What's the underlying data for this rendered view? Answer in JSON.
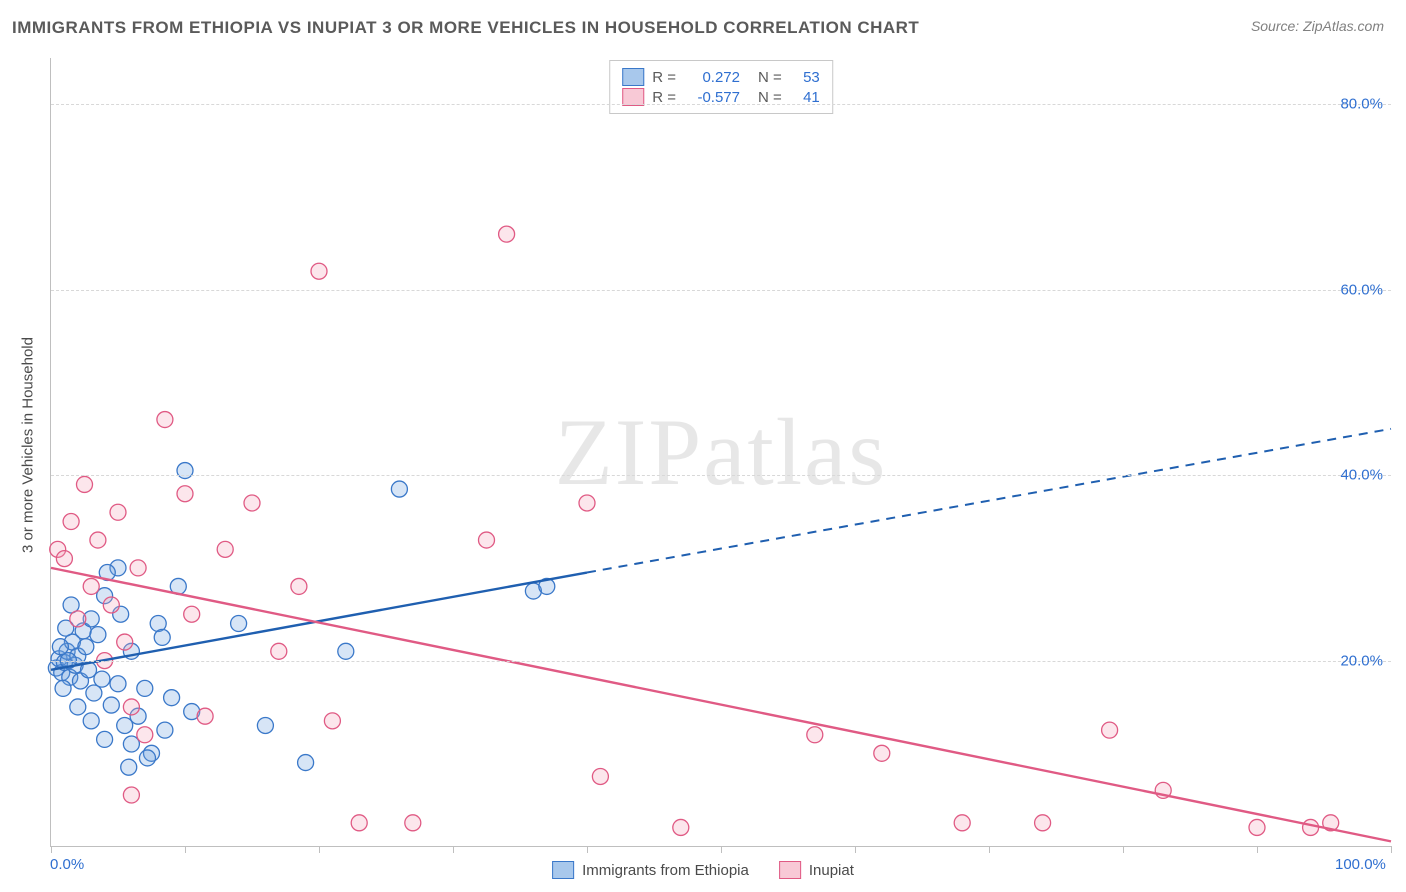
{
  "title": "IMMIGRANTS FROM ETHIOPIA VS INUPIAT 3 OR MORE VEHICLES IN HOUSEHOLD CORRELATION CHART",
  "source": "Source: ZipAtlas.com",
  "watermark": "ZIPatlas",
  "y_axis_title": "3 or more Vehicles in Household",
  "chart": {
    "type": "scatter-with-trend",
    "xlim": [
      0,
      100
    ],
    "ylim": [
      0,
      85
    ],
    "x_ticks": [
      0,
      10,
      20,
      30,
      40,
      50,
      60,
      70,
      80,
      90,
      100
    ],
    "x_tick_labels": {
      "0": "0.0%",
      "100": "100.0%"
    },
    "y_ticks": [
      20,
      40,
      60,
      80
    ],
    "y_tick_labels": {
      "20": "20.0%",
      "40": "40.0%",
      "60": "60.0%",
      "80": "80.0%"
    },
    "marker_radius": 8,
    "marker_stroke_width": 1.3,
    "marker_fill_opacity": 0.28,
    "background_color": "#ffffff",
    "grid_color": "#d8d8d8",
    "axis_color": "#bfbfbf"
  },
  "series": [
    {
      "name": "Immigrants from Ethiopia",
      "color": "#6fa3e0",
      "stroke": "#3a78c9",
      "line_color": "#1f5fb0",
      "R": "0.272",
      "N": "53",
      "trend": {
        "x1": 0,
        "y1": 19,
        "x2_solid": 40,
        "y2_solid": 29.5,
        "x2": 100,
        "y2": 45
      },
      "points": [
        [
          0.4,
          19.2
        ],
        [
          0.6,
          20.2
        ],
        [
          0.8,
          18.7
        ],
        [
          1.0,
          19.8
        ],
        [
          1.2,
          21.0
        ],
        [
          1.4,
          18.2
        ],
        [
          1.6,
          22.0
        ],
        [
          1.8,
          19.5
        ],
        [
          2.0,
          20.5
        ],
        [
          2.2,
          17.8
        ],
        [
          2.4,
          23.2
        ],
        [
          2.6,
          21.5
        ],
        [
          2.8,
          19.0
        ],
        [
          3.0,
          24.5
        ],
        [
          3.2,
          16.5
        ],
        [
          3.5,
          22.8
        ],
        [
          3.8,
          18.0
        ],
        [
          4.0,
          27.0
        ],
        [
          4.5,
          15.2
        ],
        [
          5.0,
          30.0
        ],
        [
          5.2,
          25.0
        ],
        [
          5.5,
          13.0
        ],
        [
          6.0,
          21.0
        ],
        [
          6.5,
          14.0
        ],
        [
          7.0,
          17.0
        ],
        [
          7.5,
          10.0
        ],
        [
          8.0,
          24.0
        ],
        [
          8.5,
          12.5
        ],
        [
          9.0,
          16.0
        ],
        [
          9.5,
          28.0
        ],
        [
          10.0,
          40.5
        ],
        [
          10.5,
          14.5
        ],
        [
          2.0,
          15.0
        ],
        [
          3.0,
          13.5
        ],
        [
          4.0,
          11.5
        ],
        [
          5.0,
          17.5
        ],
        [
          6.0,
          11.0
        ],
        [
          1.5,
          26.0
        ],
        [
          0.9,
          17.0
        ],
        [
          1.1,
          23.5
        ],
        [
          4.2,
          29.5
        ],
        [
          5.8,
          8.5
        ],
        [
          7.2,
          9.5
        ],
        [
          8.3,
          22.5
        ],
        [
          19.0,
          9.0
        ],
        [
          14.0,
          24.0
        ],
        [
          16.0,
          13.0
        ],
        [
          22.0,
          21.0
        ],
        [
          26.0,
          38.5
        ],
        [
          36.0,
          27.5
        ],
        [
          37.0,
          28.0
        ],
        [
          1.3,
          20.0
        ],
        [
          0.7,
          21.5
        ]
      ]
    },
    {
      "name": "Inupiat",
      "color": "#f4a7bb",
      "stroke": "#e05a84",
      "line_color": "#e05a84",
      "R": "-0.577",
      "N": "41",
      "trend": {
        "x1": 0,
        "y1": 30,
        "x2_solid": 100,
        "y2_solid": 0.5,
        "x2": 100,
        "y2": 0.5
      },
      "points": [
        [
          0.5,
          32.0
        ],
        [
          1.0,
          31.0
        ],
        [
          1.5,
          35.0
        ],
        [
          2.0,
          24.5
        ],
        [
          2.5,
          39.0
        ],
        [
          3.0,
          28.0
        ],
        [
          3.5,
          33.0
        ],
        [
          4.0,
          20.0
        ],
        [
          4.5,
          26.0
        ],
        [
          5.0,
          36.0
        ],
        [
          5.5,
          22.0
        ],
        [
          6.0,
          15.0
        ],
        [
          6.5,
          30.0
        ],
        [
          7.0,
          12.0
        ],
        [
          8.5,
          46.0
        ],
        [
          10.0,
          38.0
        ],
        [
          10.5,
          25.0
        ],
        [
          11.5,
          14.0
        ],
        [
          13.0,
          32.0
        ],
        [
          15.0,
          37.0
        ],
        [
          17.0,
          21.0
        ],
        [
          18.5,
          28.0
        ],
        [
          20.0,
          62.0
        ],
        [
          21.0,
          13.5
        ],
        [
          23.0,
          2.5
        ],
        [
          27.0,
          2.5
        ],
        [
          32.5,
          33.0
        ],
        [
          34.0,
          66.0
        ],
        [
          40.0,
          37.0
        ],
        [
          41.0,
          7.5
        ],
        [
          47.0,
          2.0
        ],
        [
          57.0,
          12.0
        ],
        [
          62.0,
          10.0
        ],
        [
          68.0,
          2.5
        ],
        [
          74.0,
          2.5
        ],
        [
          79.0,
          12.5
        ],
        [
          83.0,
          6.0
        ],
        [
          90.0,
          2.0
        ],
        [
          94.0,
          2.0
        ],
        [
          95.5,
          2.5
        ],
        [
          6.0,
          5.5
        ]
      ]
    }
  ],
  "legend_bottom": [
    {
      "label": "Immigrants from Ethiopia",
      "fill": "#a8c8ec",
      "stroke": "#3a78c9"
    },
    {
      "label": "Inupiat",
      "fill": "#f8c9d6",
      "stroke": "#e05a84"
    }
  ],
  "legend_top_rows": [
    {
      "swatch_fill": "#a8c8ec",
      "swatch_stroke": "#3a78c9",
      "R": "0.272",
      "N": "53"
    },
    {
      "swatch_fill": "#f8c9d6",
      "swatch_stroke": "#e05a84",
      "R": "-0.577",
      "N": "41"
    }
  ]
}
